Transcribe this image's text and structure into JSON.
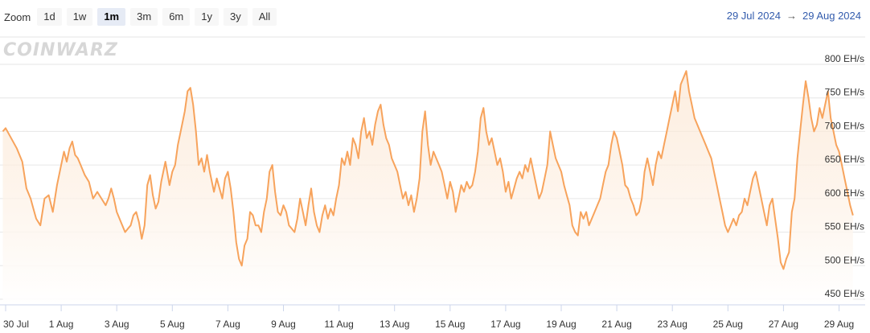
{
  "toolbar": {
    "zoom_label": "Zoom",
    "buttons": [
      "1d",
      "1w",
      "1m",
      "3m",
      "6m",
      "1y",
      "3y",
      "All"
    ],
    "active": "1m"
  },
  "range": {
    "from": "29 Jul 2024",
    "arrow": "→",
    "to": "29 Aug 2024"
  },
  "watermark": "COINWARZ",
  "colors": {
    "line": "#f7a35c",
    "fill_top": "#fbe3cc",
    "fill_bottom": "#ffffff",
    "grid": "#e6e6e6",
    "axis": "#333333",
    "range_text": "#335cad"
  },
  "chart_data": {
    "type": "area",
    "x_unit": "day index from 30 Jul 2024 (0 = 30 Jul)",
    "y_unit": "EH/s",
    "ylim": [
      450,
      800
    ],
    "ytick_values": [
      450,
      500,
      550,
      600,
      650,
      700,
      750,
      800
    ],
    "ytick_labels": [
      "450 EH/s",
      "500 EH/s",
      "550 EH/s",
      "600 EH/s",
      "650 EH/s",
      "700 EH/s",
      "750 EH/s",
      "800 EH/s"
    ],
    "xtick_labels": [
      "30 Jul",
      "1 Aug",
      "3 Aug",
      "5 Aug",
      "7 Aug",
      "9 Aug",
      "11 Aug",
      "13 Aug",
      "15 Aug",
      "17 Aug",
      "19 Aug",
      "21 Aug",
      "23 Aug",
      "25 Aug",
      "27 Aug",
      "29 Aug"
    ],
    "xtick_values": [
      0,
      2,
      4,
      6,
      8,
      10,
      12,
      14,
      16,
      18,
      20,
      22,
      24,
      26,
      28,
      30
    ],
    "grid": true,
    "legend": "none",
    "series": [
      {
        "points": [
          [
            -0.1,
            700
          ],
          [
            0.0,
            705
          ],
          [
            0.2,
            690
          ],
          [
            0.4,
            675
          ],
          [
            0.6,
            655
          ],
          [
            0.75,
            615
          ],
          [
            0.9,
            600
          ],
          [
            1.0,
            585
          ],
          [
            1.1,
            570
          ],
          [
            1.25,
            560
          ],
          [
            1.4,
            600
          ],
          [
            1.55,
            605
          ],
          [
            1.7,
            580
          ],
          [
            1.85,
            620
          ],
          [
            2.0,
            650
          ],
          [
            2.1,
            670
          ],
          [
            2.2,
            655
          ],
          [
            2.3,
            675
          ],
          [
            2.4,
            685
          ],
          [
            2.5,
            665
          ],
          [
            2.6,
            660
          ],
          [
            2.7,
            650
          ],
          [
            2.85,
            635
          ],
          [
            3.0,
            625
          ],
          [
            3.15,
            600
          ],
          [
            3.3,
            610
          ],
          [
            3.45,
            600
          ],
          [
            3.6,
            590
          ],
          [
            3.7,
            600
          ],
          [
            3.8,
            615
          ],
          [
            3.9,
            600
          ],
          [
            4.0,
            580
          ],
          [
            4.15,
            565
          ],
          [
            4.3,
            550
          ],
          [
            4.4,
            555
          ],
          [
            4.5,
            560
          ],
          [
            4.6,
            575
          ],
          [
            4.7,
            580
          ],
          [
            4.8,
            565
          ],
          [
            4.9,
            540
          ],
          [
            5.0,
            560
          ],
          [
            5.1,
            620
          ],
          [
            5.2,
            635
          ],
          [
            5.3,
            605
          ],
          [
            5.4,
            585
          ],
          [
            5.5,
            595
          ],
          [
            5.6,
            625
          ],
          [
            5.75,
            655
          ],
          [
            5.9,
            620
          ],
          [
            6.0,
            640
          ],
          [
            6.1,
            650
          ],
          [
            6.2,
            680
          ],
          [
            6.3,
            700
          ],
          [
            6.45,
            730
          ],
          [
            6.55,
            760
          ],
          [
            6.65,
            765
          ],
          [
            6.75,
            740
          ],
          [
            6.85,
            700
          ],
          [
            6.95,
            650
          ],
          [
            7.05,
            660
          ],
          [
            7.15,
            640
          ],
          [
            7.25,
            665
          ],
          [
            7.35,
            640
          ],
          [
            7.5,
            610
          ],
          [
            7.6,
            630
          ],
          [
            7.7,
            615
          ],
          [
            7.8,
            600
          ],
          [
            7.9,
            630
          ],
          [
            8.0,
            640
          ],
          [
            8.1,
            615
          ],
          [
            8.2,
            580
          ],
          [
            8.3,
            535
          ],
          [
            8.4,
            510
          ],
          [
            8.5,
            500
          ],
          [
            8.6,
            530
          ],
          [
            8.7,
            540
          ],
          [
            8.8,
            580
          ],
          [
            8.9,
            575
          ],
          [
            9.0,
            560
          ],
          [
            9.1,
            560
          ],
          [
            9.2,
            550
          ],
          [
            9.3,
            580
          ],
          [
            9.4,
            600
          ],
          [
            9.5,
            640
          ],
          [
            9.6,
            650
          ],
          [
            9.7,
            610
          ],
          [
            9.8,
            580
          ],
          [
            9.9,
            575
          ],
          [
            10.0,
            590
          ],
          [
            10.1,
            580
          ],
          [
            10.2,
            560
          ],
          [
            10.3,
            555
          ],
          [
            10.4,
            550
          ],
          [
            10.5,
            570
          ],
          [
            10.6,
            600
          ],
          [
            10.7,
            580
          ],
          [
            10.8,
            560
          ],
          [
            10.9,
            590
          ],
          [
            11.0,
            615
          ],
          [
            11.1,
            580
          ],
          [
            11.2,
            560
          ],
          [
            11.3,
            550
          ],
          [
            11.4,
            575
          ],
          [
            11.5,
            590
          ],
          [
            11.6,
            570
          ],
          [
            11.7,
            585
          ],
          [
            11.8,
            575
          ],
          [
            11.9,
            600
          ],
          [
            12.0,
            620
          ],
          [
            12.1,
            660
          ],
          [
            12.2,
            650
          ],
          [
            12.3,
            670
          ],
          [
            12.4,
            650
          ],
          [
            12.5,
            690
          ],
          [
            12.6,
            680
          ],
          [
            12.7,
            660
          ],
          [
            12.8,
            700
          ],
          [
            12.9,
            720
          ],
          [
            13.0,
            690
          ],
          [
            13.1,
            700
          ],
          [
            13.2,
            680
          ],
          [
            13.3,
            710
          ],
          [
            13.4,
            730
          ],
          [
            13.5,
            740
          ],
          [
            13.6,
            710
          ],
          [
            13.7,
            690
          ],
          [
            13.8,
            680
          ],
          [
            13.9,
            660
          ],
          [
            14.0,
            650
          ],
          [
            14.1,
            640
          ],
          [
            14.2,
            620
          ],
          [
            14.3,
            600
          ],
          [
            14.4,
            610
          ],
          [
            14.5,
            590
          ],
          [
            14.6,
            605
          ],
          [
            14.7,
            580
          ],
          [
            14.8,
            600
          ],
          [
            14.9,
            630
          ],
          [
            15.0,
            700
          ],
          [
            15.1,
            730
          ],
          [
            15.2,
            680
          ],
          [
            15.3,
            650
          ],
          [
            15.4,
            670
          ],
          [
            15.5,
            660
          ],
          [
            15.6,
            650
          ],
          [
            15.7,
            640
          ],
          [
            15.8,
            620
          ],
          [
            15.9,
            600
          ],
          [
            16.0,
            625
          ],
          [
            16.1,
            610
          ],
          [
            16.2,
            580
          ],
          [
            16.3,
            600
          ],
          [
            16.4,
            620
          ],
          [
            16.5,
            610
          ],
          [
            16.6,
            625
          ],
          [
            16.7,
            615
          ],
          [
            16.8,
            620
          ],
          [
            16.9,
            640
          ],
          [
            17.0,
            670
          ],
          [
            17.1,
            720
          ],
          [
            17.2,
            735
          ],
          [
            17.3,
            700
          ],
          [
            17.4,
            680
          ],
          [
            17.5,
            690
          ],
          [
            17.6,
            670
          ],
          [
            17.7,
            650
          ],
          [
            17.8,
            660
          ],
          [
            17.9,
            640
          ],
          [
            18.0,
            610
          ],
          [
            18.1,
            625
          ],
          [
            18.2,
            600
          ],
          [
            18.3,
            615
          ],
          [
            18.4,
            630
          ],
          [
            18.5,
            640
          ],
          [
            18.6,
            630
          ],
          [
            18.7,
            650
          ],
          [
            18.8,
            640
          ],
          [
            18.9,
            660
          ],
          [
            19.0,
            640
          ],
          [
            19.1,
            620
          ],
          [
            19.2,
            600
          ],
          [
            19.3,
            610
          ],
          [
            19.4,
            630
          ],
          [
            19.5,
            650
          ],
          [
            19.6,
            700
          ],
          [
            19.7,
            680
          ],
          [
            19.8,
            660
          ],
          [
            19.9,
            650
          ],
          [
            20.0,
            640
          ],
          [
            20.1,
            620
          ],
          [
            20.2,
            605
          ],
          [
            20.3,
            590
          ],
          [
            20.4,
            560
          ],
          [
            20.5,
            550
          ],
          [
            20.6,
            545
          ],
          [
            20.7,
            580
          ],
          [
            20.8,
            570
          ],
          [
            20.9,
            580
          ],
          [
            21.0,
            560
          ],
          [
            21.1,
            570
          ],
          [
            21.2,
            580
          ],
          [
            21.3,
            590
          ],
          [
            21.4,
            600
          ],
          [
            21.5,
            620
          ],
          [
            21.6,
            640
          ],
          [
            21.7,
            650
          ],
          [
            21.8,
            680
          ],
          [
            21.9,
            700
          ],
          [
            22.0,
            690
          ],
          [
            22.1,
            670
          ],
          [
            22.2,
            650
          ],
          [
            22.3,
            620
          ],
          [
            22.4,
            615
          ],
          [
            22.5,
            600
          ],
          [
            22.6,
            590
          ],
          [
            22.7,
            575
          ],
          [
            22.8,
            580
          ],
          [
            22.9,
            600
          ],
          [
            23.0,
            640
          ],
          [
            23.1,
            660
          ],
          [
            23.2,
            640
          ],
          [
            23.3,
            620
          ],
          [
            23.4,
            650
          ],
          [
            23.5,
            670
          ],
          [
            23.6,
            660
          ],
          [
            23.7,
            680
          ],
          [
            23.8,
            700
          ],
          [
            23.9,
            720
          ],
          [
            24.0,
            740
          ],
          [
            24.1,
            760
          ],
          [
            24.2,
            730
          ],
          [
            24.3,
            770
          ],
          [
            24.4,
            780
          ],
          [
            24.5,
            790
          ],
          [
            24.6,
            760
          ],
          [
            24.7,
            740
          ],
          [
            24.8,
            720
          ],
          [
            24.9,
            710
          ],
          [
            25.0,
            700
          ],
          [
            25.1,
            690
          ],
          [
            25.2,
            680
          ],
          [
            25.3,
            670
          ],
          [
            25.4,
            660
          ],
          [
            25.5,
            640
          ],
          [
            25.6,
            620
          ],
          [
            25.7,
            600
          ],
          [
            25.8,
            580
          ],
          [
            25.9,
            560
          ],
          [
            26.0,
            550
          ],
          [
            26.1,
            560
          ],
          [
            26.2,
            570
          ],
          [
            26.3,
            560
          ],
          [
            26.4,
            575
          ],
          [
            26.5,
            580
          ],
          [
            26.6,
            600
          ],
          [
            26.7,
            590
          ],
          [
            26.8,
            610
          ],
          [
            26.9,
            630
          ],
          [
            27.0,
            640
          ],
          [
            27.1,
            620
          ],
          [
            27.2,
            600
          ],
          [
            27.3,
            580
          ],
          [
            27.4,
            560
          ],
          [
            27.5,
            590
          ],
          [
            27.6,
            600
          ],
          [
            27.7,
            570
          ],
          [
            27.8,
            540
          ],
          [
            27.9,
            505
          ],
          [
            28.0,
            495
          ],
          [
            28.1,
            510
          ],
          [
            28.2,
            520
          ],
          [
            28.3,
            580
          ],
          [
            28.4,
            600
          ],
          [
            28.5,
            660
          ],
          [
            28.6,
            700
          ],
          [
            28.7,
            740
          ],
          [
            28.8,
            775
          ],
          [
            28.9,
            750
          ],
          [
            29.0,
            720
          ],
          [
            29.1,
            700
          ],
          [
            29.2,
            710
          ],
          [
            29.3,
            735
          ],
          [
            29.4,
            720
          ],
          [
            29.5,
            740
          ],
          [
            29.6,
            760
          ],
          [
            29.7,
            720
          ],
          [
            29.8,
            700
          ],
          [
            29.9,
            680
          ],
          [
            30.0,
            670
          ],
          [
            30.1,
            650
          ],
          [
            30.2,
            630
          ],
          [
            30.3,
            610
          ],
          [
            30.4,
            590
          ],
          [
            30.5,
            575
          ]
        ]
      }
    ]
  }
}
